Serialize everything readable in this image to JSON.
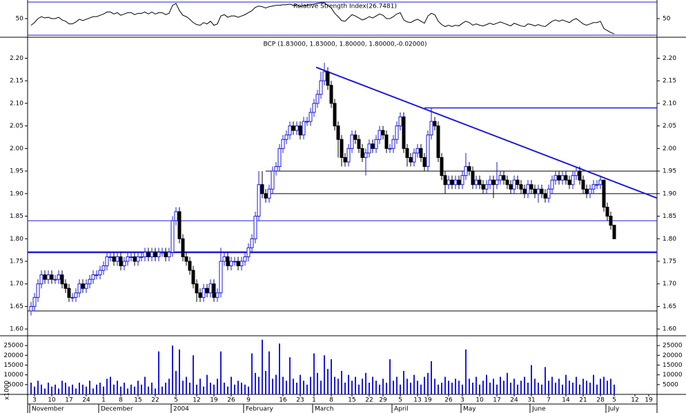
{
  "chart_data": [
    {
      "type": "line",
      "title": "Relative Strength Index(26.7481)",
      "ylim": [
        25,
        75
      ],
      "yticks": [
        50
      ],
      "color": "#000000",
      "level_color": "#1a1adb",
      "values": [
        40,
        44,
        50,
        53,
        51,
        52,
        50,
        50,
        52,
        48,
        46,
        42,
        42,
        45,
        49,
        47,
        49,
        51,
        53,
        53,
        55,
        57,
        60,
        60,
        57,
        59,
        55,
        57,
        59,
        59,
        56,
        58,
        58,
        60,
        57,
        60,
        57,
        59,
        59,
        56,
        58,
        70,
        73,
        62,
        55,
        53,
        49,
        44,
        41,
        40,
        44,
        42,
        46,
        40,
        42,
        54,
        56,
        52,
        54,
        54,
        52,
        54,
        56,
        59,
        62,
        67,
        69,
        68,
        66,
        68,
        69,
        70,
        70,
        71,
        71,
        72,
        70,
        71,
        68,
        70,
        70,
        71,
        72,
        73,
        74,
        74,
        70,
        66,
        58,
        53,
        47,
        46,
        51,
        56,
        54,
        51,
        48,
        50,
        53,
        51,
        54,
        57,
        55,
        50,
        50,
        53,
        57,
        59,
        48,
        45,
        44,
        47,
        49,
        46,
        43,
        54,
        58,
        56,
        46,
        41,
        38,
        40,
        38,
        40,
        39,
        43,
        46,
        44,
        40,
        42,
        40,
        39,
        41,
        43,
        41,
        43,
        45,
        43,
        41,
        39,
        43,
        41,
        39,
        38,
        42,
        41,
        39,
        41,
        39,
        38,
        42,
        46,
        48,
        46,
        48,
        46,
        44,
        48,
        50,
        46,
        42,
        40,
        42,
        44,
        44,
        46,
        35,
        32,
        29,
        27
      ]
    },
    {
      "type": "candlestick",
      "title": "BCP (1.83000, 1.83000, 1.80000, 1.80000,-0.02000)",
      "ylim": [
        1.585,
        2.245
      ],
      "yticks": [
        {
          "value": 1.6,
          "label": "1.60"
        },
        {
          "value": 1.65,
          "label": "1.65"
        },
        {
          "value": 1.7,
          "label": "1.70"
        },
        {
          "value": 1.75,
          "label": "1.75"
        },
        {
          "value": 1.8,
          "label": "1.80"
        },
        {
          "value": 1.85,
          "label": "1.85"
        },
        {
          "value": 1.9,
          "label": "1.90"
        },
        {
          "value": 1.95,
          "label": "1.95"
        },
        {
          "value": 2.0,
          "label": "2.00"
        },
        {
          "value": 2.05,
          "label": "2.05"
        },
        {
          "value": 2.1,
          "label": "2.10"
        },
        {
          "value": 2.15,
          "label": "2.15"
        },
        {
          "value": 2.2,
          "label": "2.20"
        }
      ],
      "up_color": "#1a1adb",
      "down_color": "#000000",
      "levels": [
        {
          "value": 2.09,
          "color": "#1a1adb"
        },
        {
          "value": 1.95,
          "color": "#000000"
        },
        {
          "value": 1.9,
          "color": "#000000"
        },
        {
          "value": 1.84,
          "color": "#1a1adb"
        },
        {
          "value": 1.77,
          "color": "#1a1adb"
        },
        {
          "value": 1.64,
          "color": "#000000"
        }
      ],
      "trendline": {
        "values": [
          2.18,
          1.89
        ],
        "color": "#1a1adb"
      },
      "open": [
        1.64,
        1.65,
        1.67,
        1.7,
        1.72,
        1.71,
        1.72,
        1.71,
        1.71,
        1.72,
        1.7,
        1.69,
        1.67,
        1.67,
        1.68,
        1.7,
        1.69,
        1.7,
        1.71,
        1.72,
        1.72,
        1.73,
        1.74,
        1.76,
        1.76,
        1.75,
        1.76,
        1.74,
        1.75,
        1.76,
        1.76,
        1.75,
        1.76,
        1.76,
        1.77,
        1.76,
        1.77,
        1.76,
        1.77,
        1.77,
        1.76,
        1.77,
        1.84,
        1.86,
        1.8,
        1.76,
        1.75,
        1.73,
        1.7,
        1.68,
        1.67,
        1.69,
        1.68,
        1.7,
        1.67,
        1.68,
        1.75,
        1.76,
        1.74,
        1.75,
        1.75,
        1.74,
        1.75,
        1.76,
        1.78,
        1.8,
        1.85,
        1.92,
        1.9,
        1.89,
        1.91,
        1.95,
        1.96,
        2.0,
        2.02,
        2.03,
        2.05,
        2.04,
        2.05,
        2.03,
        2.06,
        2.06,
        2.08,
        2.1,
        2.12,
        2.15,
        2.17,
        2.14,
        2.1,
        2.05,
        2.02,
        1.98,
        1.97,
        2.0,
        2.03,
        2.02,
        2.0,
        1.98,
        1.99,
        2.01,
        2.0,
        2.02,
        2.04,
        2.03,
        2.0,
        2.0,
        2.02,
        2.05,
        2.07,
        2.0,
        1.98,
        1.97,
        1.99,
        2.0,
        1.98,
        1.96,
        2.03,
        2.06,
        2.05,
        1.98,
        1.94,
        1.92,
        1.93,
        1.92,
        1.93,
        1.92,
        1.94,
        1.96,
        1.95,
        1.92,
        1.93,
        1.92,
        1.91,
        1.92,
        1.93,
        1.92,
        1.93,
        1.94,
        1.93,
        1.92,
        1.91,
        1.93,
        1.92,
        1.91,
        1.9,
        1.92,
        1.91,
        1.9,
        1.91,
        1.9,
        1.89,
        1.91,
        1.93,
        1.94,
        1.93,
        1.94,
        1.93,
        1.92,
        1.94,
        1.95,
        1.93,
        1.91,
        1.9,
        1.91,
        1.92,
        1.92,
        1.93,
        1.87,
        1.85,
        1.83
      ],
      "high": [
        1.66,
        1.68,
        1.71,
        1.73,
        1.73,
        1.73,
        1.73,
        1.72,
        1.73,
        1.73,
        1.71,
        1.7,
        1.68,
        1.69,
        1.71,
        1.71,
        1.71,
        1.72,
        1.73,
        1.73,
        1.74,
        1.75,
        1.77,
        1.77,
        1.77,
        1.77,
        1.77,
        1.76,
        1.77,
        1.77,
        1.77,
        1.77,
        1.77,
        1.78,
        1.78,
        1.78,
        1.78,
        1.78,
        1.78,
        1.78,
        1.78,
        1.85,
        1.87,
        1.87,
        1.81,
        1.77,
        1.76,
        1.74,
        1.71,
        1.69,
        1.7,
        1.7,
        1.71,
        1.71,
        1.69,
        1.78,
        1.77,
        1.77,
        1.76,
        1.76,
        1.76,
        1.76,
        1.77,
        1.79,
        1.81,
        1.86,
        1.95,
        1.95,
        1.91,
        1.92,
        1.96,
        1.97,
        2.01,
        2.03,
        2.04,
        2.06,
        2.06,
        2.06,
        2.06,
        2.07,
        2.07,
        2.09,
        2.11,
        2.13,
        2.17,
        2.19,
        2.18,
        2.15,
        2.11,
        2.06,
        2.03,
        1.99,
        2.01,
        2.04,
        2.04,
        2.03,
        2.01,
        2.0,
        2.02,
        2.02,
        2.03,
        2.05,
        2.05,
        2.04,
        2.01,
        2.03,
        2.06,
        2.08,
        2.08,
        2.01,
        1.99,
        2.0,
        2.01,
        2.01,
        1.99,
        2.04,
        2.09,
        2.07,
        2.06,
        1.99,
        1.95,
        1.94,
        1.94,
        1.94,
        1.94,
        1.95,
        1.99,
        1.97,
        1.96,
        1.94,
        1.94,
        1.93,
        1.93,
        1.94,
        1.94,
        1.97,
        1.95,
        1.95,
        1.94,
        1.93,
        1.94,
        1.94,
        1.93,
        1.92,
        1.93,
        1.93,
        1.92,
        1.92,
        1.92,
        1.91,
        1.92,
        1.94,
        1.95,
        1.95,
        1.95,
        1.95,
        1.94,
        1.95,
        1.96,
        1.96,
        1.94,
        1.92,
        1.92,
        1.93,
        1.93,
        1.94,
        1.93,
        1.88,
        1.86,
        1.83
      ],
      "low": [
        1.63,
        1.64,
        1.66,
        1.69,
        1.7,
        1.7,
        1.7,
        1.7,
        1.7,
        1.69,
        1.68,
        1.66,
        1.66,
        1.66,
        1.67,
        1.68,
        1.68,
        1.69,
        1.7,
        1.71,
        1.71,
        1.72,
        1.73,
        1.75,
        1.74,
        1.74,
        1.73,
        1.73,
        1.74,
        1.75,
        1.74,
        1.74,
        1.75,
        1.75,
        1.75,
        1.75,
        1.75,
        1.75,
        1.76,
        1.75,
        1.75,
        1.76,
        1.83,
        1.79,
        1.75,
        1.74,
        1.72,
        1.69,
        1.66,
        1.66,
        1.66,
        1.67,
        1.67,
        1.66,
        1.66,
        1.67,
        1.74,
        1.73,
        1.73,
        1.74,
        1.73,
        1.73,
        1.74,
        1.75,
        1.77,
        1.79,
        1.84,
        1.89,
        1.88,
        1.88,
        1.9,
        1.94,
        1.95,
        1.99,
        2.01,
        2.02,
        2.03,
        2.03,
        2.02,
        2.02,
        2.05,
        2.05,
        2.07,
        2.09,
        2.11,
        2.14,
        2.13,
        2.09,
        2.04,
        1.98,
        1.96,
        1.96,
        1.96,
        1.99,
        2.01,
        1.99,
        1.97,
        1.94,
        1.98,
        1.99,
        1.99,
        2.01,
        2.02,
        1.99,
        1.99,
        1.99,
        2.01,
        2.04,
        1.99,
        1.96,
        1.96,
        1.96,
        1.98,
        1.97,
        1.95,
        1.95,
        2.02,
        2.04,
        1.97,
        1.93,
        1.9,
        1.91,
        1.91,
        1.91,
        1.91,
        1.91,
        1.93,
        1.94,
        1.91,
        1.91,
        1.91,
        1.9,
        1.9,
        1.91,
        1.89,
        1.91,
        1.92,
        1.92,
        1.91,
        1.9,
        1.9,
        1.91,
        1.9,
        1.89,
        1.89,
        1.9,
        1.89,
        1.88,
        1.89,
        1.88,
        1.88,
        1.9,
        1.92,
        1.92,
        1.92,
        1.92,
        1.91,
        1.91,
        1.93,
        1.92,
        1.9,
        1.89,
        1.89,
        1.9,
        1.91,
        1.91,
        1.86,
        1.84,
        1.82,
        1.8
      ],
      "close": [
        1.65,
        1.67,
        1.7,
        1.72,
        1.71,
        1.72,
        1.71,
        1.71,
        1.72,
        1.7,
        1.69,
        1.67,
        1.67,
        1.68,
        1.7,
        1.69,
        1.7,
        1.71,
        1.72,
        1.72,
        1.73,
        1.74,
        1.76,
        1.76,
        1.75,
        1.76,
        1.74,
        1.75,
        1.76,
        1.76,
        1.75,
        1.76,
        1.76,
        1.77,
        1.76,
        1.77,
        1.76,
        1.77,
        1.77,
        1.76,
        1.77,
        1.84,
        1.86,
        1.8,
        1.76,
        1.75,
        1.73,
        1.7,
        1.68,
        1.67,
        1.69,
        1.68,
        1.7,
        1.67,
        1.68,
        1.75,
        1.76,
        1.74,
        1.75,
        1.75,
        1.74,
        1.75,
        1.76,
        1.78,
        1.8,
        1.85,
        1.92,
        1.9,
        1.89,
        1.91,
        1.95,
        1.96,
        2.0,
        2.02,
        2.03,
        2.05,
        2.04,
        2.05,
        2.03,
        2.06,
        2.06,
        2.08,
        2.1,
        2.12,
        2.15,
        2.17,
        2.14,
        2.1,
        2.05,
        2.02,
        1.98,
        1.97,
        2.0,
        2.03,
        2.02,
        2.0,
        1.98,
        1.99,
        2.01,
        2.0,
        2.02,
        2.04,
        2.03,
        2.0,
        2.0,
        2.02,
        2.05,
        2.07,
        2.0,
        1.98,
        1.97,
        1.99,
        2.0,
        1.98,
        1.96,
        2.03,
        2.06,
        2.05,
        1.98,
        1.94,
        1.92,
        1.93,
        1.92,
        1.93,
        1.92,
        1.94,
        1.96,
        1.95,
        1.92,
        1.93,
        1.92,
        1.91,
        1.92,
        1.93,
        1.92,
        1.93,
        1.94,
        1.93,
        1.92,
        1.91,
        1.93,
        1.92,
        1.91,
        1.9,
        1.92,
        1.91,
        1.9,
        1.91,
        1.9,
        1.89,
        1.91,
        1.93,
        1.94,
        1.93,
        1.94,
        1.93,
        1.92,
        1.94,
        1.95,
        1.93,
        1.91,
        1.9,
        1.91,
        1.92,
        1.92,
        1.93,
        1.87,
        1.85,
        1.83,
        1.8
      ]
    },
    {
      "type": "bar",
      "color": "#1a1adb",
      "ylim": [
        0,
        30000
      ],
      "yticks": [
        5000,
        10000,
        15000,
        20000,
        25000
      ],
      "unit_label": "x1000",
      "values": [
        6000,
        4000,
        7000,
        5000,
        3000,
        6000,
        4000,
        5000,
        3000,
        7000,
        6000,
        4000,
        5000,
        3000,
        6000,
        5000,
        4000,
        7000,
        3000,
        5000,
        6000,
        4000,
        8000,
        9000,
        5000,
        7000,
        4000,
        6000,
        3000,
        5000,
        4000,
        7000,
        5000,
        9000,
        4000,
        6000,
        3000,
        22000,
        4000,
        6000,
        8000,
        25000,
        12000,
        23000,
        7000,
        9000,
        6000,
        20000,
        5000,
        8000,
        4000,
        10000,
        6000,
        5000,
        8000,
        22000,
        6000,
        4000,
        9000,
        5000,
        7000,
        6000,
        5000,
        4000,
        21000,
        11000,
        9000,
        28000,
        12000,
        22000,
        8000,
        10000,
        26000,
        9000,
        7000,
        19000,
        8000,
        6000,
        10000,
        7000,
        5000,
        9000,
        21000,
        11000,
        7000,
        20000,
        13000,
        18000,
        9000,
        8000,
        12000,
        6000,
        10000,
        7000,
        9000,
        5000,
        8000,
        11000,
        6000,
        9000,
        7000,
        5000,
        8000,
        6000,
        18000,
        7000,
        9000,
        5000,
        12000,
        8000,
        6000,
        10000,
        7000,
        5000,
        9000,
        11000,
        17000,
        8000,
        5000,
        6000,
        9000,
        7000,
        6000,
        8000,
        7000,
        5000,
        23000,
        8000,
        6000,
        9000,
        5000,
        7000,
        10000,
        6000,
        8000,
        5000,
        9000,
        7000,
        11000,
        6000,
        8000,
        5000,
        7000,
        9000,
        6000,
        15000,
        8000,
        6000,
        5000,
        14000,
        7000,
        9000,
        6000,
        8000,
        5000,
        10000,
        7000,
        6000,
        9000,
        5000,
        8000,
        7000,
        6000,
        10000,
        5000,
        8000,
        9000,
        7000,
        8000,
        5000
      ],
      "xticks": [
        {
          "value": 1,
          "label": "3"
        },
        {
          "value": 6,
          "label": "10"
        },
        {
          "value": 11,
          "label": "17"
        },
        {
          "value": 16,
          "label": "24"
        },
        {
          "value": 21,
          "label": "1"
        },
        {
          "value": 26,
          "label": "8"
        },
        {
          "value": 31,
          "label": "15"
        },
        {
          "value": 36,
          "label": "22"
        },
        {
          "value": 42,
          "label": "5"
        },
        {
          "value": 48,
          "label": "12"
        },
        {
          "value": 53,
          "label": "19"
        },
        {
          "value": 58,
          "label": "26"
        },
        {
          "value": 63,
          "label": "9"
        },
        {
          "value": 73,
          "label": "16"
        },
        {
          "value": 78,
          "label": "23"
        },
        {
          "value": 82,
          "label": "1"
        },
        {
          "value": 87,
          "label": "8"
        },
        {
          "value": 93,
          "label": "15"
        },
        {
          "value": 98,
          "label": "22"
        },
        {
          "value": 102,
          "label": "29"
        },
        {
          "value": 107,
          "label": "5"
        },
        {
          "value": 112,
          "label": "13"
        },
        {
          "value": 115,
          "label": "19"
        },
        {
          "value": 121,
          "label": "26"
        },
        {
          "value": 125,
          "label": "3"
        },
        {
          "value": 130,
          "label": "10"
        },
        {
          "value": 135,
          "label": "17"
        },
        {
          "value": 140,
          "label": "24"
        },
        {
          "value": 145,
          "label": "31"
        },
        {
          "value": 150,
          "label": "7"
        },
        {
          "value": 155,
          "label": "14"
        },
        {
          "value": 160,
          "label": "21"
        },
        {
          "value": 165,
          "label": "28"
        },
        {
          "value": 169,
          "label": "5"
        },
        {
          "value": 175,
          "label": "12"
        },
        {
          "value": 179,
          "label": "19"
        }
      ],
      "months": [
        {
          "value": 0,
          "label": "November"
        },
        {
          "value": 20,
          "label": "December"
        },
        {
          "value": 41,
          "label": "2004"
        },
        {
          "value": 62,
          "label": "February"
        },
        {
          "value": 82,
          "label": "March"
        },
        {
          "value": 105,
          "label": "April"
        },
        {
          "value": 125,
          "label": "May"
        },
        {
          "value": 145,
          "label": "June"
        },
        {
          "value": 167,
          "label": "July"
        }
      ]
    }
  ]
}
